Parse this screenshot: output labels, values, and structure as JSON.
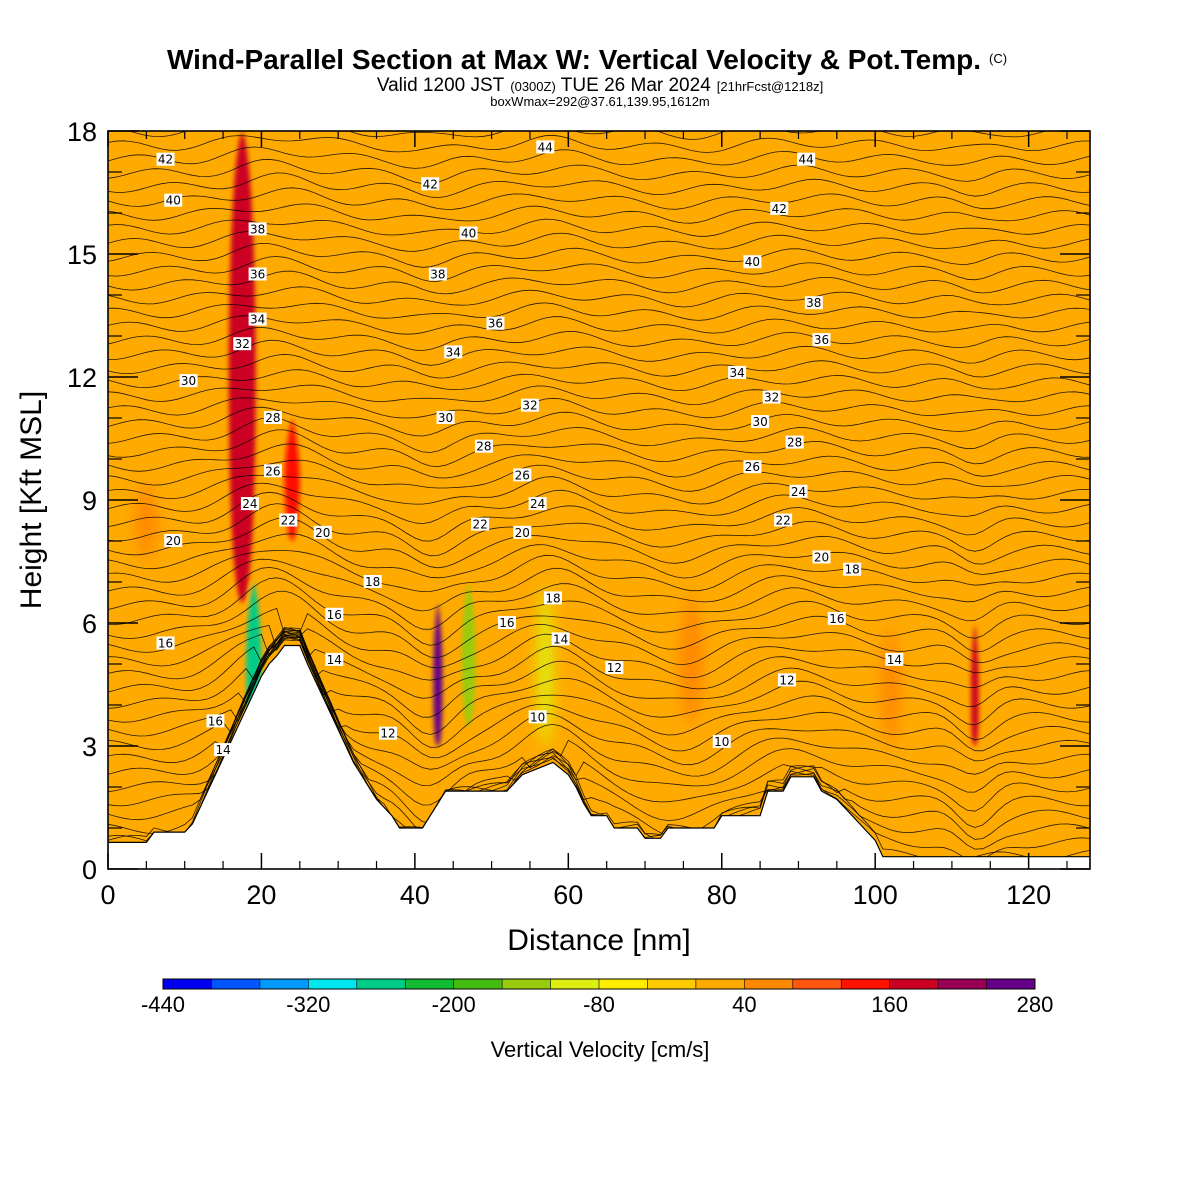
{
  "header": {
    "title": "Wind-Parallel Section at Max W: Vertical Velocity & Pot.Temp.",
    "title_mark": "(C)",
    "valid_prefix": "Valid 1200 JST",
    "valid_utc": "(0300Z)",
    "valid_date": "TUE 26 Mar 2024",
    "forecast": "[21hrFcst@1218z]",
    "box_info": "boxWmax=292@37.61,139.95,1612m"
  },
  "chart_data": {
    "type": "heatmap",
    "xlabel": "Distance [nm]",
    "ylabel": "Height [Kft MSL]",
    "xlim": [
      0,
      128
    ],
    "ylim": [
      0,
      18
    ],
    "x_ticks": [
      "0",
      "20",
      "40",
      "60",
      "80",
      "100",
      "120"
    ],
    "y_ticks": [
      "0",
      "3",
      "6",
      "9",
      "12",
      "15",
      "18"
    ],
    "colorbar": {
      "label": "Vertical Velocity [cm/s]",
      "tick_labels": [
        "-440",
        "-320",
        "-200",
        "-80",
        "40",
        "160",
        "280"
      ],
      "colors": [
        "#0000ee",
        "#0055ff",
        "#0099ff",
        "#00e6ee",
        "#00cc88",
        "#11bb33",
        "#44bb11",
        "#99cc11",
        "#ddee11",
        "#ffee00",
        "#ffcc00",
        "#ffaa00",
        "#ff8800",
        "#ff5511",
        "#ff1100",
        "#cc0022",
        "#990055",
        "#660088"
      ]
    },
    "terrain_kft": [
      [
        0,
        0.65
      ],
      [
        5,
        0.65
      ],
      [
        6,
        0.9
      ],
      [
        10,
        0.9
      ],
      [
        11,
        1.1
      ],
      [
        12,
        1.5
      ],
      [
        13,
        1.9
      ],
      [
        14,
        2.3
      ],
      [
        15,
        2.7
      ],
      [
        16,
        3.1
      ],
      [
        17,
        3.5
      ],
      [
        18,
        3.9
      ],
      [
        19,
        4.3
      ],
      [
        20,
        4.7
      ],
      [
        21,
        5.0
      ],
      [
        22,
        5.2
      ],
      [
        23,
        5.45
      ],
      [
        25,
        5.45
      ],
      [
        26,
        5.0
      ],
      [
        27,
        4.6
      ],
      [
        28,
        4.2
      ],
      [
        29,
        3.8
      ],
      [
        30,
        3.4
      ],
      [
        31,
        3.0
      ],
      [
        32,
        2.6
      ],
      [
        33,
        2.3
      ],
      [
        34,
        2.0
      ],
      [
        35,
        1.7
      ],
      [
        36,
        1.5
      ],
      [
        37,
        1.3
      ],
      [
        38,
        1.0
      ],
      [
        41,
        1.0
      ],
      [
        42,
        1.3
      ],
      [
        43,
        1.6
      ],
      [
        44,
        1.9
      ],
      [
        52,
        1.9
      ],
      [
        54,
        2.3
      ],
      [
        58,
        2.6
      ],
      [
        60,
        2.3
      ],
      [
        61,
        2.0
      ],
      [
        62,
        1.6
      ],
      [
        63,
        1.3
      ],
      [
        65,
        1.3
      ],
      [
        66,
        1.0
      ],
      [
        69,
        1.0
      ],
      [
        70,
        0.75
      ],
      [
        72,
        0.75
      ],
      [
        73,
        1.0
      ],
      [
        79,
        1.0
      ],
      [
        80,
        1.3
      ],
      [
        85,
        1.3
      ],
      [
        86,
        1.9
      ],
      [
        88,
        1.9
      ],
      [
        89,
        2.25
      ],
      [
        92,
        2.25
      ],
      [
        93,
        1.9
      ],
      [
        95,
        1.7
      ],
      [
        96,
        1.5
      ],
      [
        97,
        1.3
      ],
      [
        98,
        1.1
      ],
      [
        99,
        0.9
      ],
      [
        100,
        0.7
      ],
      [
        101,
        0.3
      ],
      [
        128,
        0.3
      ]
    ],
    "wind_features": [
      {
        "x": 17.5,
        "width": 3.5,
        "z_bottom": 6.5,
        "z_top": 18,
        "w": 170
      },
      {
        "x": 24,
        "width": 2.0,
        "z_bottom": 8,
        "z_top": 11,
        "w": 140
      },
      {
        "x": 19,
        "width": 2.0,
        "z_bottom": 3.0,
        "z_top": 7.0,
        "w": -260
      },
      {
        "x": 43,
        "width": 1.2,
        "z_bottom": 3.0,
        "z_top": 6.5,
        "w": 280
      },
      {
        "x": 47,
        "width": 1.8,
        "z_bottom": 3.5,
        "z_top": 7.0,
        "w": -150
      },
      {
        "x": 57,
        "width": 2.0,
        "z_bottom": 3.0,
        "z_top": 7.0,
        "w": -90
      },
      {
        "x": 113,
        "width": 1.0,
        "z_bottom": 3.0,
        "z_top": 6.0,
        "w": 170
      },
      {
        "x": 76,
        "width": 3.0,
        "z_bottom": 3.5,
        "z_top": 6.8,
        "w": 60
      },
      {
        "x": 102,
        "width": 2.5,
        "z_bottom": 3.0,
        "z_top": 6.0,
        "w": 60
      },
      {
        "x": 5,
        "width": 3.0,
        "z_bottom": 7.5,
        "z_top": 9.5,
        "w": 60
      }
    ],
    "theta_levels": [
      10,
      12,
      14,
      16,
      18,
      20,
      22,
      24,
      26,
      28,
      30,
      32,
      34,
      36,
      38,
      40,
      42,
      44
    ],
    "contour_labels": [
      {
        "text": "42",
        "x": 7.5,
        "y": 17.3
      },
      {
        "text": "40",
        "x": 8.5,
        "y": 16.3
      },
      {
        "text": "38",
        "x": 19.5,
        "y": 15.6
      },
      {
        "text": "36",
        "x": 19.5,
        "y": 14.5
      },
      {
        "text": "34",
        "x": 19.5,
        "y": 13.4
      },
      {
        "text": "32",
        "x": 17.5,
        "y": 12.8
      },
      {
        "text": "30",
        "x": 10.5,
        "y": 11.9
      },
      {
        "text": "28",
        "x": 21.5,
        "y": 11.0
      },
      {
        "text": "26",
        "x": 21.5,
        "y": 9.7
      },
      {
        "text": "24",
        "x": 18.5,
        "y": 8.9
      },
      {
        "text": "22",
        "x": 23.5,
        "y": 8.5
      },
      {
        "text": "20",
        "x": 8.5,
        "y": 8.0
      },
      {
        "text": "16",
        "x": 7.5,
        "y": 5.5
      },
      {
        "text": "16",
        "x": 14,
        "y": 3.6
      },
      {
        "text": "14",
        "x": 15,
        "y": 2.9
      },
      {
        "text": "20",
        "x": 28,
        "y": 8.2
      },
      {
        "text": "18",
        "x": 34.5,
        "y": 7.0
      },
      {
        "text": "16",
        "x": 29.5,
        "y": 6.2
      },
      {
        "text": "14",
        "x": 29.5,
        "y": 5.1
      },
      {
        "text": "12",
        "x": 36.5,
        "y": 3.3
      },
      {
        "text": "44",
        "x": 57,
        "y": 17.6
      },
      {
        "text": "42",
        "x": 42,
        "y": 16.7
      },
      {
        "text": "40",
        "x": 47,
        "y": 15.5
      },
      {
        "text": "38",
        "x": 43,
        "y": 14.5
      },
      {
        "text": "36",
        "x": 50.5,
        "y": 13.3
      },
      {
        "text": "34",
        "x": 45,
        "y": 12.6
      },
      {
        "text": "32",
        "x": 55,
        "y": 11.3
      },
      {
        "text": "30",
        "x": 44,
        "y": 11.0
      },
      {
        "text": "28",
        "x": 49,
        "y": 10.3
      },
      {
        "text": "26",
        "x": 54,
        "y": 9.6
      },
      {
        "text": "24",
        "x": 56,
        "y": 8.9
      },
      {
        "text": "22",
        "x": 48.5,
        "y": 8.4
      },
      {
        "text": "20",
        "x": 54,
        "y": 8.2
      },
      {
        "text": "18",
        "x": 58,
        "y": 6.6
      },
      {
        "text": "16",
        "x": 52,
        "y": 6.0
      },
      {
        "text": "14",
        "x": 59,
        "y": 5.6
      },
      {
        "text": "12",
        "x": 66,
        "y": 4.9
      },
      {
        "text": "10",
        "x": 56,
        "y": 3.7
      },
      {
        "text": "44",
        "x": 91,
        "y": 17.3
      },
      {
        "text": "42",
        "x": 87.5,
        "y": 16.1
      },
      {
        "text": "40",
        "x": 84,
        "y": 14.8
      },
      {
        "text": "38",
        "x": 92,
        "y": 13.8
      },
      {
        "text": "36",
        "x": 93,
        "y": 12.9
      },
      {
        "text": "34",
        "x": 82,
        "y": 12.1
      },
      {
        "text": "32",
        "x": 86.5,
        "y": 11.5
      },
      {
        "text": "30",
        "x": 85,
        "y": 10.9
      },
      {
        "text": "28",
        "x": 89.5,
        "y": 10.4
      },
      {
        "text": "26",
        "x": 84,
        "y": 9.8
      },
      {
        "text": "24",
        "x": 90,
        "y": 9.2
      },
      {
        "text": "22",
        "x": 88,
        "y": 8.5
      },
      {
        "text": "20",
        "x": 93,
        "y": 7.6
      },
      {
        "text": "18",
        "x": 97,
        "y": 7.3
      },
      {
        "text": "16",
        "x": 95,
        "y": 6.1
      },
      {
        "text": "14",
        "x": 102.5,
        "y": 5.1
      },
      {
        "text": "12",
        "x": 88.5,
        "y": 4.6
      },
      {
        "text": "10",
        "x": 80,
        "y": 3.1
      }
    ]
  }
}
